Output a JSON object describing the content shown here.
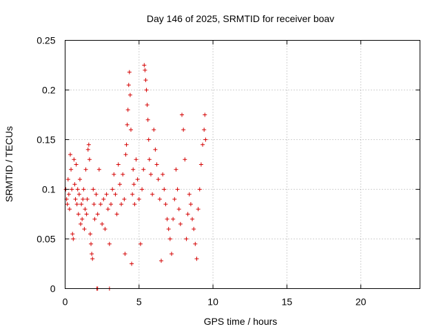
{
  "chart_data": {
    "type": "scatter",
    "title": "Day 146 of 2025, SRMTID for receiver boav",
    "xlabel": "GPS time / hours",
    "ylabel": "SRMTID / TECUs",
    "xlim": [
      0,
      24
    ],
    "ylim": [
      0,
      0.25
    ],
    "xticks": [
      0,
      5,
      10,
      15,
      20
    ],
    "yticks": [
      0,
      0.05,
      0.1,
      0.15,
      0.2,
      0.25
    ],
    "xtick_labels": [
      "0",
      "5",
      "10",
      "15",
      "20"
    ],
    "ytick_labels": [
      "0",
      "0.05",
      "0.1",
      "0.15",
      "0.2",
      "0.25"
    ],
    "grid": true,
    "marker": "plus",
    "color": "#d40000",
    "series": [
      {
        "name": "SRMTID",
        "points": [
          [
            0.05,
            0.1
          ],
          [
            0.1,
            0.09
          ],
          [
            0.15,
            0.085
          ],
          [
            0.2,
            0.11
          ],
          [
            0.25,
            0.095
          ],
          [
            0.3,
            0.08
          ],
          [
            0.35,
            0.135
          ],
          [
            0.4,
            0.12
          ],
          [
            0.45,
            0.1
          ],
          [
            0.5,
            0.055
          ],
          [
            0.55,
            0.05
          ],
          [
            0.6,
            0.13
          ],
          [
            0.65,
            0.105
          ],
          [
            0.7,
            0.09
          ],
          [
            0.75,
            0.125
          ],
          [
            0.8,
            0.085
          ],
          [
            0.85,
            0.1
          ],
          [
            0.9,
            0.075
          ],
          [
            0.95,
            0.095
          ],
          [
            1.0,
            0.11
          ],
          [
            1.05,
            0.065
          ],
          [
            1.1,
            0.085
          ],
          [
            1.15,
            0.07
          ],
          [
            1.2,
            0.09
          ],
          [
            1.25,
            0.1
          ],
          [
            1.3,
            0.06
          ],
          [
            1.35,
            0.08
          ],
          [
            1.4,
            0.12
          ],
          [
            1.45,
            0.075
          ],
          [
            1.5,
            0.09
          ],
          [
            1.55,
            0.14
          ],
          [
            1.6,
            0.145
          ],
          [
            1.65,
            0.13
          ],
          [
            1.7,
            0.055
          ],
          [
            1.75,
            0.045
          ],
          [
            1.8,
            0.035
          ],
          [
            1.85,
            0.03
          ],
          [
            1.9,
            0.1
          ],
          [
            1.95,
            0.085
          ],
          [
            2.0,
            0.07
          ],
          [
            2.1,
            0.095
          ],
          [
            2.2,
            0.075
          ],
          [
            2.3,
            0.12
          ],
          [
            2.4,
            0.085
          ],
          [
            2.5,
            0.065
          ],
          [
            2.6,
            0.09
          ],
          [
            2.7,
            0.06
          ],
          [
            2.8,
            0.095
          ],
          [
            2.9,
            0.08
          ],
          [
            3.0,
            0.045
          ],
          [
            3.1,
            0.085
          ],
          [
            3.2,
            0.1
          ],
          [
            3.3,
            0.115
          ],
          [
            3.4,
            0.095
          ],
          [
            3.5,
            0.075
          ],
          [
            3.6,
            0.125
          ],
          [
            3.7,
            0.105
          ],
          [
            3.8,
            0.085
          ],
          [
            3.9,
            0.115
          ],
          [
            4.0,
            0.09
          ],
          [
            4.05,
            0.035
          ],
          [
            4.1,
            0.135
          ],
          [
            4.15,
            0.145
          ],
          [
            4.2,
            0.165
          ],
          [
            4.25,
            0.18
          ],
          [
            4.3,
            0.205
          ],
          [
            4.35,
            0.218
          ],
          [
            4.4,
            0.195
          ],
          [
            4.45,
            0.16
          ],
          [
            4.5,
            0.025
          ],
          [
            4.55,
            0.095
          ],
          [
            4.6,
            0.12
          ],
          [
            4.65,
            0.105
          ],
          [
            4.7,
            0.085
          ],
          [
            4.8,
            0.13
          ],
          [
            4.9,
            0.11
          ],
          [
            5.0,
            0.09
          ],
          [
            5.1,
            0.045
          ],
          [
            5.2,
            0.1
          ],
          [
            5.3,
            0.12
          ],
          [
            5.35,
            0.225
          ],
          [
            5.4,
            0.22
          ],
          [
            5.45,
            0.21
          ],
          [
            5.5,
            0.2
          ],
          [
            5.55,
            0.185
          ],
          [
            5.6,
            0.17
          ],
          [
            5.65,
            0.15
          ],
          [
            5.7,
            0.13
          ],
          [
            5.8,
            0.115
          ],
          [
            5.9,
            0.095
          ],
          [
            6.0,
            0.16
          ],
          [
            6.1,
            0.14
          ],
          [
            6.2,
            0.125
          ],
          [
            6.3,
            0.11
          ],
          [
            6.4,
            0.09
          ],
          [
            6.5,
            0.028
          ],
          [
            6.6,
            0.115
          ],
          [
            6.7,
            0.1
          ],
          [
            6.8,
            0.085
          ],
          [
            6.9,
            0.07
          ],
          [
            7.0,
            0.06
          ],
          [
            7.1,
            0.05
          ],
          [
            7.2,
            0.035
          ],
          [
            7.3,
            0.07
          ],
          [
            7.4,
            0.09
          ],
          [
            7.5,
            0.12
          ],
          [
            7.6,
            0.1
          ],
          [
            7.7,
            0.08
          ],
          [
            7.8,
            0.065
          ],
          [
            7.9,
            0.175
          ],
          [
            8.0,
            0.16
          ],
          [
            8.1,
            0.13
          ],
          [
            8.2,
            0.05
          ],
          [
            8.3,
            0.075
          ],
          [
            8.4,
            0.095
          ],
          [
            8.5,
            0.085
          ],
          [
            8.6,
            0.07
          ],
          [
            8.7,
            0.06
          ],
          [
            8.8,
            0.045
          ],
          [
            8.9,
            0.03
          ],
          [
            9.0,
            0.08
          ],
          [
            9.1,
            0.1
          ],
          [
            9.2,
            0.125
          ],
          [
            9.3,
            0.145
          ],
          [
            9.4,
            0.16
          ],
          [
            9.45,
            0.175
          ],
          [
            9.5,
            0.15
          ],
          [
            2.15,
            0.0
          ],
          [
            2.2,
            0.0
          ],
          [
            3.0,
            0.0
          ]
        ]
      }
    ]
  }
}
